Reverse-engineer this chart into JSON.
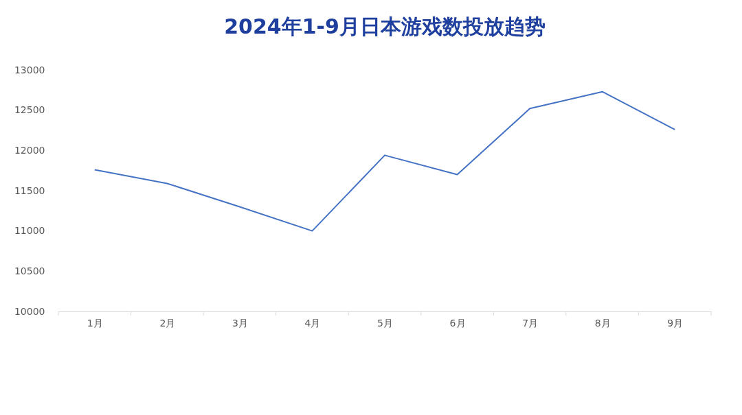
{
  "chart_data": {
    "type": "line",
    "title": "2024年1-9月日本游戏数投放趋势",
    "categories": [
      "1月",
      "2月",
      "3月",
      "4月",
      "5月",
      "6月",
      "7月",
      "8月",
      "9月"
    ],
    "series": [
      {
        "color": "#4472c4",
        "values": [
          11760,
          11590,
          11300,
          11000,
          11940,
          11700,
          12520,
          12730,
          12260
        ]
      }
    ],
    "ylim": [
      10000,
      13000
    ],
    "yticks": [
      10000,
      10500,
      11000,
      11500,
      12000,
      12500,
      13000
    ],
    "grid": false,
    "marker": "none",
    "line_style": "solid"
  }
}
